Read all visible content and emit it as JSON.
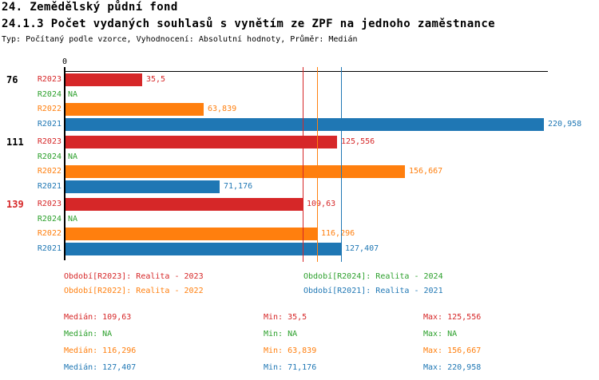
{
  "header": {
    "title1": "24. Zemědělský půdní fond",
    "title2": "24.1.3 Počet vydaných souhlasů s vynětím ze ZPF na jednoho zaměstnance",
    "meta": "Typ: Počítaný podle vzorce, Vyhodnocení: Absolutní hodnoty, Průměr: Medián"
  },
  "chart_data": {
    "type": "bar",
    "orientation": "horizontal",
    "x_axis": {
      "zero_tick_label": "0",
      "min": 0,
      "max_estimate": 223,
      "grid": false
    },
    "series_order": [
      "R2023",
      "R2024",
      "R2022",
      "R2021"
    ],
    "series_colors": {
      "R2023": "#d62728",
      "R2024": "#2ca02c",
      "R2022": "#ff7f0e",
      "R2021": "#1f77b4"
    },
    "groups": [
      {
        "label": "76",
        "label_color": "#000000",
        "bars": [
          {
            "series": "R2023",
            "value": 35.5,
            "display": "35,5"
          },
          {
            "series": "R2024",
            "value": null,
            "display": "NA"
          },
          {
            "series": "R2022",
            "value": 63.839,
            "display": "63,839"
          },
          {
            "series": "R2021",
            "value": 220.958,
            "display": "220,958"
          }
        ]
      },
      {
        "label": "111",
        "label_color": "#000000",
        "bars": [
          {
            "series": "R2023",
            "value": 125.556,
            "display": "125,556"
          },
          {
            "series": "R2024",
            "value": null,
            "display": "NA"
          },
          {
            "series": "R2022",
            "value": 156.667,
            "display": "156,667"
          },
          {
            "series": "R2021",
            "value": 71.176,
            "display": "71,176"
          }
        ]
      },
      {
        "label": "139",
        "label_color": "#d62728",
        "bars": [
          {
            "series": "R2023",
            "value": 109.63,
            "display": "109,63"
          },
          {
            "series": "R2024",
            "value": null,
            "display": "NA"
          },
          {
            "series": "R2022",
            "value": 116.296,
            "display": "116,296"
          },
          {
            "series": "R2021",
            "value": 127.407,
            "display": "127,407"
          }
        ]
      }
    ],
    "median_lines": [
      {
        "series": "R2023",
        "value": 109.63
      },
      {
        "series": "R2022",
        "value": 116.296
      },
      {
        "series": "R2021",
        "value": 127.407
      }
    ]
  },
  "legend": {
    "items": [
      {
        "label": "Období[R2023]: Realita - 2023",
        "color": "#d62728"
      },
      {
        "label": "Období[R2024]: Realita - 2024",
        "color": "#2ca02c"
      },
      {
        "label": "Období[R2022]: Realita - 2022",
        "color": "#ff7f0e"
      },
      {
        "label": "Období[R2021]: Realita - 2021",
        "color": "#1f77b4"
      }
    ]
  },
  "stats": {
    "rows": [
      {
        "series": "R2023",
        "color": "#d62728",
        "cells": [
          "Medián: 109,63",
          "Min: 35,5",
          "Max: 125,556"
        ]
      },
      {
        "series": "R2024",
        "color": "#2ca02c",
        "cells": [
          "Medián: NA",
          "Min: NA",
          "Max: NA"
        ]
      },
      {
        "series": "R2022",
        "color": "#ff7f0e",
        "cells": [
          "Medián: 116,296",
          "Min: 63,839",
          "Max: 156,667"
        ]
      },
      {
        "series": "R2021",
        "color": "#1f77b4",
        "cells": [
          "Medián: 127,407",
          "Min: 71,176",
          "Max: 220,958"
        ]
      }
    ]
  }
}
